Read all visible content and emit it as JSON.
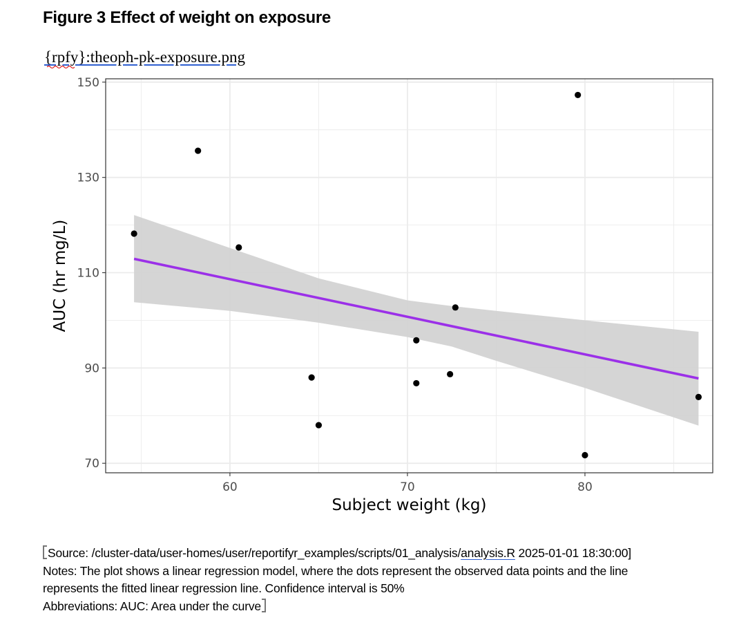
{
  "document": {
    "title": "Figure 3 Effect of weight on exposure",
    "filename_ref": "{rpfy}:theoph-pk-exposure.png",
    "footnotes": {
      "source_prefix": "Source: /cluster-data/user-homes/user/reportifyr_examples/scripts/01_analysis/",
      "source_file": "analysis.R",
      "source_suffix": " 2025-01-01 18:30:00]",
      "notes_line1": "Notes: The plot shows a linear regression model, where the dots represent the observed data points and the line",
      "notes_line2": "represents the fitted linear regression line. Confidence interval is 50%",
      "abbreviations": "Abbreviations: AUC: Area under the curve"
    }
  },
  "colors": {
    "regression_line": "#9b30e8",
    "confidence_band": "#d3d3d3",
    "points": "#000000",
    "grid": "#ebebeb",
    "panel_border": "#333333"
  },
  "chart_data": {
    "type": "scatter",
    "xlabel": "Subject weight (kg)",
    "ylabel": "AUC (hr mg/L)",
    "xlim": [
      53.0,
      87.2
    ],
    "ylim": [
      68.0,
      150.7
    ],
    "x_ticks": [
      60,
      70,
      80
    ],
    "y_ticks": [
      70,
      90,
      110,
      130,
      150
    ],
    "x_minor": [
      55,
      65,
      75,
      85
    ],
    "y_minor": [
      80,
      100,
      120,
      140
    ],
    "grid": true,
    "points": [
      {
        "x": 54.6,
        "y": 118.2
      },
      {
        "x": 58.2,
        "y": 135.6
      },
      {
        "x": 60.5,
        "y": 115.3
      },
      {
        "x": 64.6,
        "y": 88.0
      },
      {
        "x": 65.0,
        "y": 78.0
      },
      {
        "x": 70.5,
        "y": 95.8
      },
      {
        "x": 70.5,
        "y": 86.8
      },
      {
        "x": 72.4,
        "y": 88.7
      },
      {
        "x": 72.7,
        "y": 102.7
      },
      {
        "x": 79.6,
        "y": 147.3
      },
      {
        "x": 80.0,
        "y": 71.7
      },
      {
        "x": 86.4,
        "y": 83.9
      }
    ],
    "regression": {
      "x": [
        54.6,
        86.4
      ],
      "y": [
        112.9,
        87.8
      ]
    },
    "confidence_band": {
      "x": [
        54.6,
        60.0,
        65.0,
        70.0,
        72.5,
        75.0,
        80.0,
        86.4
      ],
      "upper": [
        122.1,
        115.2,
        108.8,
        104.2,
        103.0,
        102.0,
        100.0,
        97.6
      ],
      "lower": [
        103.8,
        102.0,
        99.5,
        96.5,
        94.5,
        91.5,
        85.8,
        77.9
      ]
    },
    "confidence_level": "50%"
  }
}
